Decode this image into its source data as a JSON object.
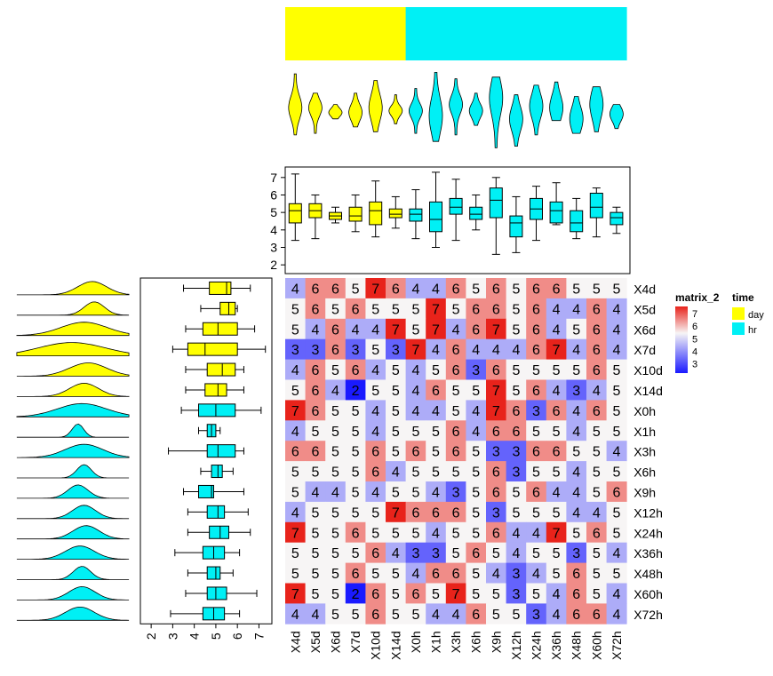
{
  "chart_data": {
    "type": "heatmap",
    "columns": [
      "X4d",
      "X5d",
      "X6d",
      "X7d",
      "X10d",
      "X14d",
      "X0h",
      "X1h",
      "X3h",
      "X6h",
      "X9h",
      "X12h",
      "X24h",
      "X36h",
      "X48h",
      "X60h",
      "X72h"
    ],
    "rows": [
      "X4d",
      "X5d",
      "X6d",
      "X7d",
      "X10d",
      "X14d",
      "X0h",
      "X1h",
      "X3h",
      "X6h",
      "X9h",
      "X12h",
      "X24h",
      "X36h",
      "X48h",
      "X60h",
      "X72h"
    ],
    "column_group": [
      "day",
      "day",
      "day",
      "day",
      "day",
      "day",
      "hr",
      "hr",
      "hr",
      "hr",
      "hr",
      "hr",
      "hr",
      "hr",
      "hr",
      "hr",
      "hr"
    ],
    "row_group": [
      "day",
      "day",
      "day",
      "day",
      "day",
      "day",
      "hr",
      "hr",
      "hr",
      "hr",
      "hr",
      "hr",
      "hr",
      "hr",
      "hr",
      "hr",
      "hr"
    ],
    "values": [
      [
        4,
        6,
        6,
        5,
        7,
        6,
        4,
        4,
        6,
        5,
        6,
        5,
        6,
        6,
        5,
        5,
        5
      ],
      [
        5,
        6,
        5,
        6,
        5,
        5,
        5,
        7,
        5,
        6,
        6,
        5,
        6,
        4,
        4,
        6,
        4
      ],
      [
        5,
        4,
        6,
        4,
        4,
        7,
        5,
        7,
        4,
        6,
        7,
        5,
        6,
        4,
        5,
        6,
        4
      ],
      [
        3,
        3,
        6,
        3,
        5,
        3,
        7,
        4,
        6,
        4,
        4,
        4,
        6,
        7,
        4,
        6,
        4
      ],
      [
        4,
        6,
        5,
        6,
        4,
        5,
        4,
        5,
        6,
        3,
        6,
        5,
        5,
        5,
        5,
        6,
        5
      ],
      [
        5,
        6,
        4,
        2,
        5,
        5,
        4,
        6,
        5,
        5,
        7,
        5,
        6,
        4,
        3,
        4,
        5
      ],
      [
        7,
        6,
        5,
        5,
        4,
        5,
        4,
        4,
        5,
        4,
        7,
        6,
        3,
        6,
        4,
        6,
        5
      ],
      [
        4,
        5,
        5,
        5,
        4,
        5,
        5,
        5,
        6,
        4,
        6,
        6,
        5,
        5,
        4,
        5,
        5
      ],
      [
        6,
        6,
        5,
        5,
        6,
        5,
        6,
        5,
        6,
        5,
        3,
        3,
        6,
        6,
        5,
        5,
        4
      ],
      [
        5,
        5,
        5,
        5,
        6,
        4,
        5,
        5,
        5,
        5,
        6,
        3,
        5,
        5,
        4,
        5,
        5
      ],
      [
        5,
        4,
        4,
        5,
        4,
        5,
        5,
        4,
        3,
        5,
        6,
        5,
        6,
        4,
        4,
        5,
        6
      ],
      [
        4,
        5,
        5,
        5,
        5,
        7,
        6,
        6,
        6,
        5,
        3,
        5,
        5,
        5,
        4,
        4,
        5
      ],
      [
        7,
        5,
        5,
        6,
        5,
        5,
        5,
        4,
        5,
        5,
        6,
        4,
        4,
        7,
        5,
        6,
        5
      ],
      [
        5,
        5,
        5,
        5,
        6,
        4,
        3,
        3,
        5,
        6,
        5,
        4,
        5,
        5,
        3,
        5,
        4
      ],
      [
        5,
        5,
        5,
        6,
        5,
        5,
        4,
        6,
        6,
        5,
        4,
        3,
        4,
        5,
        6,
        5,
        5
      ],
      [
        7,
        5,
        5,
        2,
        6,
        5,
        6,
        5,
        7,
        5,
        5,
        3,
        5,
        4,
        6,
        5,
        4
      ],
      [
        4,
        4,
        5,
        5,
        6,
        5,
        5,
        4,
        4,
        6,
        5,
        5,
        3,
        4,
        6,
        6,
        4
      ]
    ],
    "color_scale": {
      "low_value": 2,
      "mid_value": 5,
      "high_value": 7,
      "low": "#1a1aff",
      "mid": "#f7f5f5",
      "high": "#e8231b"
    },
    "group_colors": {
      "day": "#ffff00",
      "hr": "#00f0f5"
    },
    "column_boxplots": [
      {
        "min": 3.4,
        "q1": 4.4,
        "median": 5.1,
        "q3": 5.5,
        "max": 7.2,
        "outliers": []
      },
      {
        "min": 3.5,
        "q1": 4.7,
        "median": 5.1,
        "q3": 5.5,
        "max": 6.0,
        "outliers": []
      },
      {
        "min": 4.4,
        "q1": 4.6,
        "median": 4.8,
        "q3": 5.0,
        "max": 5.3,
        "outliers": []
      },
      {
        "min": 3.9,
        "q1": 4.5,
        "median": 4.8,
        "q3": 5.3,
        "max": 6.0,
        "outliers": []
      },
      {
        "min": 3.6,
        "q1": 4.3,
        "median": 5.1,
        "q3": 5.6,
        "max": 6.8,
        "outliers": []
      },
      {
        "min": 4.1,
        "q1": 4.7,
        "median": 4.9,
        "q3": 5.2,
        "max": 5.9,
        "outliers": []
      },
      {
        "min": 3.5,
        "q1": 4.5,
        "median": 4.9,
        "q3": 5.2,
        "max": 6.3,
        "outliers": []
      },
      {
        "min": 3.0,
        "q1": 3.9,
        "median": 4.6,
        "q3": 5.6,
        "max": 7.3,
        "outliers": []
      },
      {
        "min": 3.4,
        "q1": 4.9,
        "median": 5.3,
        "q3": 5.8,
        "max": 6.9,
        "outliers": []
      },
      {
        "min": 4.0,
        "q1": 4.6,
        "median": 4.9,
        "q3": 5.3,
        "max": 6.0,
        "outliers": []
      },
      {
        "min": 2.6,
        "q1": 4.7,
        "median": 5.7,
        "q3": 6.4,
        "max": 7.0,
        "outliers": []
      },
      {
        "min": 2.7,
        "q1": 3.6,
        "median": 4.4,
        "q3": 4.8,
        "max": 5.9,
        "outliers": []
      },
      {
        "min": 3.4,
        "q1": 4.6,
        "median": 5.2,
        "q3": 5.8,
        "max": 6.5,
        "outliers": []
      },
      {
        "min": 4.3,
        "q1": 4.4,
        "median": 5.1,
        "q3": 5.6,
        "max": 6.7,
        "outliers": []
      },
      {
        "min": 3.5,
        "q1": 3.9,
        "median": 4.4,
        "q3": 5.1,
        "max": 5.8,
        "outliers": []
      },
      {
        "min": 3.6,
        "q1": 4.7,
        "median": 5.3,
        "q3": 6.1,
        "max": 6.4,
        "outliers": []
      },
      {
        "min": 3.8,
        "q1": 4.3,
        "median": 4.7,
        "q3": 5.0,
        "max": 5.3,
        "outliers": []
      }
    ],
    "row_boxplots": [
      {
        "min": 3.5,
        "q1": 4.7,
        "median": 5.5,
        "q3": 5.7,
        "max": 6.6,
        "outliers": []
      },
      {
        "min": 4.3,
        "q1": 5.2,
        "median": 5.6,
        "q3": 5.9,
        "max": 6.0,
        "outliers": []
      },
      {
        "min": 3.6,
        "q1": 4.4,
        "median": 5.1,
        "q3": 6.0,
        "max": 6.8,
        "outliers": []
      },
      {
        "min": 3.0,
        "q1": 3.7,
        "median": 4.5,
        "q3": 6.0,
        "max": 7.3,
        "outliers": []
      },
      {
        "min": 3.6,
        "q1": 4.6,
        "median": 5.3,
        "q3": 5.9,
        "max": 6.3,
        "outliers": []
      },
      {
        "min": 3.6,
        "q1": 4.5,
        "median": 5.1,
        "q3": 5.5,
        "max": 6.3,
        "outliers": []
      },
      {
        "min": 3.4,
        "q1": 4.2,
        "median": 5.0,
        "q3": 5.9,
        "max": 7.1,
        "outliers": []
      },
      {
        "min": 4.2,
        "q1": 4.6,
        "median": 4.8,
        "q3": 5.0,
        "max": 5.2,
        "outliers": []
      },
      {
        "min": 2.8,
        "q1": 4.6,
        "median": 5.1,
        "q3": 5.9,
        "max": 6.3,
        "outliers": []
      },
      {
        "min": 4.3,
        "q1": 4.8,
        "median": 5.1,
        "q3": 5.3,
        "max": 5.8,
        "outliers": []
      },
      {
        "min": 3.5,
        "q1": 4.2,
        "median": 4.8,
        "q3": 4.9,
        "max": 6.3,
        "outliers": []
      },
      {
        "min": 3.7,
        "q1": 4.6,
        "median": 5.1,
        "q3": 5.4,
        "max": 6.5,
        "outliers": []
      },
      {
        "min": 3.7,
        "q1": 4.7,
        "median": 5.2,
        "q3": 5.6,
        "max": 6.6,
        "outliers": []
      },
      {
        "min": 3.1,
        "q1": 4.4,
        "median": 4.9,
        "q3": 5.4,
        "max": 6.1,
        "outliers": []
      },
      {
        "min": 3.7,
        "q1": 4.6,
        "median": 5.0,
        "q3": 5.2,
        "max": 5.8,
        "outliers": []
      },
      {
        "min": 3.6,
        "q1": 4.6,
        "median": 5.0,
        "q3": 5.5,
        "max": 6.9,
        "outliers": []
      },
      {
        "min": 2.9,
        "q1": 4.4,
        "median": 4.9,
        "q3": 5.4,
        "max": 6.1,
        "outliers": []
      }
    ],
    "y_axis_ticks": [
      "2",
      "3",
      "4",
      "5",
      "6",
      "7"
    ],
    "x_axis_ticks": [
      "2",
      "3",
      "4",
      "5",
      "6",
      "7"
    ],
    "axis_range": [
      1.5,
      7.6
    ],
    "heatmap_legend": {
      "title": "matrix_2",
      "labels": [
        "7",
        "6",
        "5",
        "4",
        "3"
      ]
    },
    "group_legend": {
      "title": "time",
      "entries": [
        "day",
        "hr"
      ]
    }
  }
}
